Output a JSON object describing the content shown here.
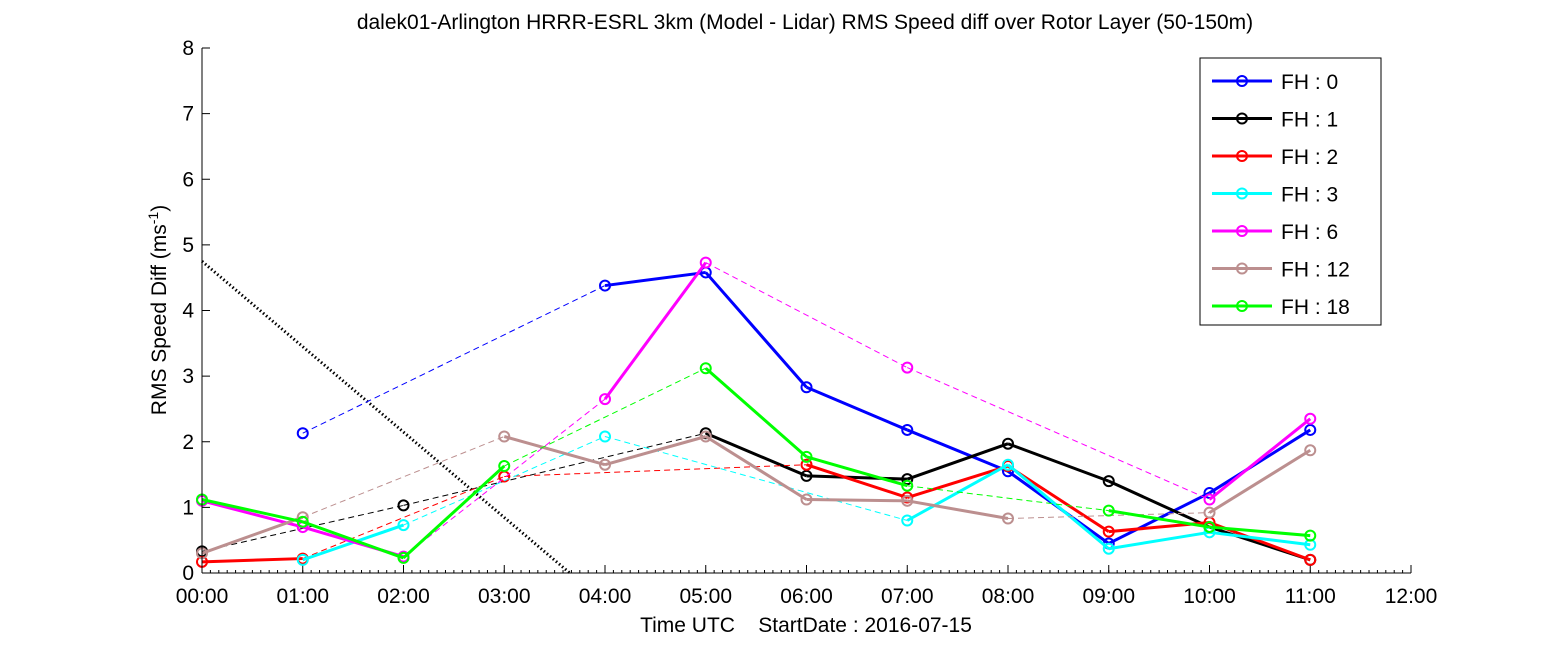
{
  "chart_data": {
    "type": "line",
    "title": "dalek01-Arlington HRRR-ESRL 3km (Model - Lidar) RMS Speed diff over Rotor Layer (50-150m)",
    "xlabel": "Time UTC    StartDate : 2016-07-15",
    "ylabel_main": "RMS Speed Diff (ms",
    "ylabel_sup": "-1",
    "ylabel_close": ")",
    "xlim": [
      0,
      12
    ],
    "ylim": [
      0,
      8
    ],
    "x_ticks": [
      "00:00",
      "01:00",
      "02:00",
      "03:00",
      "04:00",
      "05:00",
      "06:00",
      "07:00",
      "08:00",
      "09:00",
      "10:00",
      "11:00",
      "12:00"
    ],
    "y_ticks": [
      "0",
      "1",
      "2",
      "3",
      "4",
      "5",
      "6",
      "7",
      "8"
    ],
    "grid": false,
    "legend_position": "top-right",
    "series": [
      {
        "name": "FH : 0",
        "color": "#0000ff",
        "x": [
          1,
          4,
          5,
          6,
          7,
          8,
          9,
          10,
          11
        ],
        "y": [
          2.13,
          4.38,
          4.58,
          2.83,
          2.18,
          1.55,
          0.45,
          1.22,
          2.18
        ]
      },
      {
        "name": "FH : 1",
        "color": "#000000",
        "x": [
          0,
          2,
          5,
          6,
          7,
          8,
          9,
          10,
          11
        ],
        "y": [
          0.33,
          1.03,
          2.13,
          1.48,
          1.43,
          1.97,
          1.4,
          0.7,
          0.2
        ]
      },
      {
        "name": "FH : 2",
        "color": "#ff0000",
        "x": [
          0,
          1,
          3,
          6,
          7,
          8,
          9,
          10,
          11
        ],
        "y": [
          0.17,
          0.22,
          1.47,
          1.65,
          1.15,
          1.63,
          0.63,
          0.77,
          0.2
        ]
      },
      {
        "name": "FH : 3",
        "color": "#00ffff",
        "x": [
          1,
          2,
          4,
          7,
          8,
          9,
          10,
          11
        ],
        "y": [
          0.2,
          0.73,
          2.08,
          0.8,
          1.65,
          0.37,
          0.62,
          0.43
        ]
      },
      {
        "name": "FH : 6",
        "color": "#ff00ff",
        "x": [
          0,
          1,
          2,
          4,
          5,
          7,
          10,
          11
        ],
        "y": [
          1.1,
          0.7,
          0.25,
          2.65,
          4.73,
          3.13,
          1.12,
          2.35
        ]
      },
      {
        "name": "FH : 12",
        "color": "#bc8f8f",
        "x": [
          0,
          1,
          3,
          4,
          5,
          6,
          7,
          8,
          10,
          11
        ],
        "y": [
          0.3,
          0.85,
          2.08,
          1.65,
          2.08,
          1.12,
          1.1,
          0.83,
          0.92,
          1.87
        ]
      },
      {
        "name": "FH : 18",
        "color": "#00ff00",
        "x": [
          0,
          1,
          2,
          3,
          5,
          6,
          7,
          9,
          10,
          11
        ],
        "y": [
          1.12,
          0.78,
          0.23,
          1.63,
          3.12,
          1.77,
          1.33,
          0.95,
          0.7,
          0.57
        ]
      }
    ],
    "reference_line": {
      "color": "#000000",
      "x": [
        0,
        3.65
      ],
      "y": [
        4.75,
        0
      ]
    }
  }
}
